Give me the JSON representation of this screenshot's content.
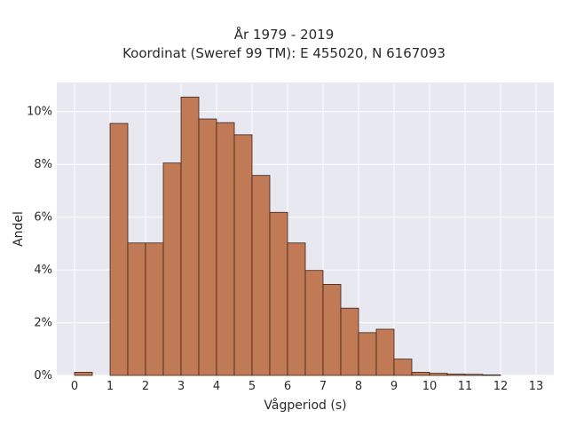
{
  "chart_data": {
    "type": "bar",
    "title": "År 1979 - 2019",
    "subtitle": "Koordinat (Sweref 99 TM): E 455020, N 6167093",
    "xlabel": "Vågperiod (s)",
    "ylabel": "Andel",
    "x_ticks": [
      "0",
      "1",
      "2",
      "3",
      "4",
      "5",
      "6",
      "7",
      "8",
      "9",
      "10",
      "11",
      "12",
      "13"
    ],
    "y_ticks": [
      "0%",
      "2%",
      "4%",
      "6%",
      "8%",
      "10%"
    ],
    "xlim": [
      -0.5,
      13.5
    ],
    "ylim": [
      0,
      11.1
    ],
    "bin_width": 0.5,
    "bin_starts": [
      0,
      1,
      1.5,
      2,
      2.5,
      3,
      3.5,
      4,
      4.5,
      5,
      5.5,
      6,
      6.5,
      7,
      7.5,
      8,
      8.5,
      9,
      9.5,
      10,
      10.5,
      11,
      11.5
    ],
    "values": [
      0.12,
      9.55,
      5.02,
      5.02,
      8.05,
      10.55,
      9.72,
      9.58,
      9.12,
      7.58,
      6.18,
      5.02,
      3.98,
      3.45,
      2.55,
      1.62,
      1.75,
      0.62,
      0.12,
      0.08,
      0.05,
      0.04,
      0.02
    ],
    "bar_color": "#c17a56",
    "edge_color": "#3d2418",
    "plot_bg": "#e8e8f1",
    "grid": true,
    "grid_color": "#ffffff"
  }
}
